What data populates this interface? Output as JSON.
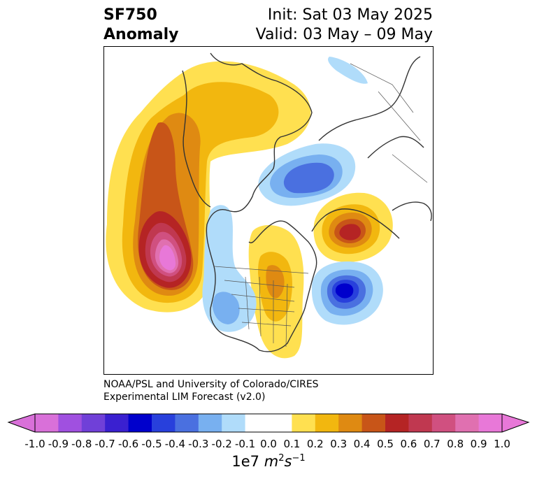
{
  "title": {
    "left_line1": "SF750",
    "left_line2": "Anomaly",
    "right_line1": "Init: Sat 03 May 2025",
    "right_line2": "Valid: 03 May – 09 May"
  },
  "credit": {
    "line1": "NOAA/PSL and University of Colorado/CIRES",
    "line2": "Experimental LIM Forecast (v2.0)"
  },
  "colorbar": {
    "ticks": [
      "-1.0",
      "-0.9",
      "-0.8",
      "-0.7",
      "-0.6",
      "-0.5",
      "-0.4",
      "-0.3",
      "-0.2",
      "-0.1",
      "0.0",
      "0.1",
      "0.2",
      "0.3",
      "0.4",
      "0.5",
      "0.6",
      "0.7",
      "0.8",
      "0.9",
      "1.0"
    ],
    "unit_prefix": "1e7",
    "unit_m": "m",
    "unit_m_exp": "2",
    "unit_s": "s",
    "unit_s_exp": "−1",
    "colors": [
      "#d970d9",
      "#a050e0",
      "#7040d8",
      "#3a20d0",
      "#0000cc",
      "#2840dc",
      "#4a70e0",
      "#78b0f0",
      "#b0dcfa",
      "#ffffff",
      "#ffffff",
      "#ffe050",
      "#f2b70f",
      "#df8a12",
      "#c85518",
      "#b52424",
      "#c03850",
      "#d05080",
      "#e070b0",
      "#e878d8"
    ],
    "min_extend_color": "#d970d9",
    "max_extend_color": "#e878d8"
  }
}
